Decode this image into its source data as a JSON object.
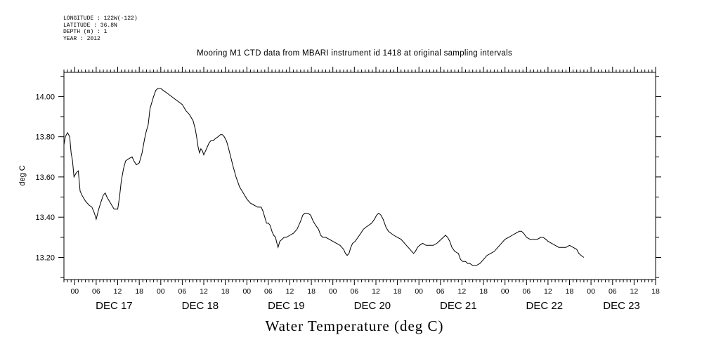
{
  "meta": {
    "longitude": "LONGITUDE : 122W(-122)",
    "latitude": "LATITUDE : 36.8N",
    "depth": "DEPTH (m) : 1",
    "year": "YEAR : 2012"
  },
  "chart_data": {
    "type": "line",
    "title": "Mooring M1 CTD data from MBARI instrument id 1418 at original sampling intervals",
    "xlabel": "Water Temperature (deg C)",
    "ylabel": "deg C",
    "ylim": [
      13.09,
      14.12
    ],
    "xlim": [
      -3,
      162
    ],
    "x_units": "hours since 2012-12-17 00:00 (tick labels show hour of day)",
    "y_ticks": [
      13.2,
      13.4,
      13.6,
      13.8,
      14.0
    ],
    "y_tick_labels": [
      "13.20",
      "13.40",
      "13.60",
      "13.80",
      "14.00"
    ],
    "x_ticks": [
      0,
      6,
      12,
      18,
      24,
      30,
      36,
      42,
      48,
      54,
      60,
      66,
      72,
      78,
      84,
      90,
      96,
      102,
      108,
      114,
      120,
      126,
      132,
      138,
      144,
      150,
      156,
      162
    ],
    "x_tick_labels": [
      "00",
      "06",
      "12",
      "18",
      "00",
      "06",
      "12",
      "18",
      "00",
      "06",
      "12",
      "18",
      "00",
      "06",
      "12",
      "18",
      "00",
      "06",
      "12",
      "18",
      "00",
      "06",
      "12",
      "18",
      "00",
      "06",
      "12",
      "18"
    ],
    "day_labels": [
      {
        "x": 11,
        "label": "DEC 17"
      },
      {
        "x": 35,
        "label": "DEC 18"
      },
      {
        "x": 59,
        "label": "DEC 19"
      },
      {
        "x": 83,
        "label": "DEC 20"
      },
      {
        "x": 107,
        "label": "DEC 21"
      },
      {
        "x": 131,
        "label": "DEC 22"
      },
      {
        "x": 152.5,
        "label": "DEC 23"
      }
    ],
    "grid": false,
    "series": [
      {
        "values": [
          [
            -3,
            13.76
          ],
          [
            -2.6,
            13.8
          ],
          [
            -2,
            13.82
          ],
          [
            -1.4,
            13.8
          ],
          [
            -1,
            13.72
          ],
          [
            -0.6,
            13.68
          ],
          [
            -0.2,
            13.6
          ],
          [
            0.4,
            13.62
          ],
          [
            1,
            13.63
          ],
          [
            1.5,
            13.53
          ],
          [
            2,
            13.51
          ],
          [
            3,
            13.48
          ],
          [
            4,
            13.46
          ],
          [
            4.8,
            13.45
          ],
          [
            5.5,
            13.42
          ],
          [
            6,
            13.39
          ],
          [
            6.7,
            13.44
          ],
          [
            7.4,
            13.48
          ],
          [
            8,
            13.51
          ],
          [
            8.5,
            13.52
          ],
          [
            9,
            13.5
          ],
          [
            10,
            13.47
          ],
          [
            11,
            13.44
          ],
          [
            12,
            13.44
          ],
          [
            12.5,
            13.5
          ],
          [
            13,
            13.58
          ],
          [
            13.6,
            13.64
          ],
          [
            14.2,
            13.68
          ],
          [
            15,
            13.69
          ],
          [
            16,
            13.7
          ],
          [
            16.5,
            13.68
          ],
          [
            17.2,
            13.66
          ],
          [
            18,
            13.67
          ],
          [
            18.8,
            13.72
          ],
          [
            19.5,
            13.79
          ],
          [
            20,
            13.83
          ],
          [
            20.5,
            13.86
          ],
          [
            21,
            13.94
          ],
          [
            21.5,
            13.97
          ],
          [
            22,
            14.0
          ],
          [
            22.6,
            14.03
          ],
          [
            23.2,
            14.04
          ],
          [
            24,
            14.04
          ],
          [
            24.7,
            14.03
          ],
          [
            25.5,
            14.02
          ],
          [
            27,
            14.0
          ],
          [
            28.5,
            13.98
          ],
          [
            30,
            13.96
          ],
          [
            31,
            13.93
          ],
          [
            32,
            13.91
          ],
          [
            33,
            13.88
          ],
          [
            33.6,
            13.84
          ],
          [
            34,
            13.8
          ],
          [
            34.4,
            13.75
          ],
          [
            34.8,
            13.72
          ],
          [
            35.2,
            13.74
          ],
          [
            35.6,
            13.73
          ],
          [
            36,
            13.71
          ],
          [
            36.5,
            13.73
          ],
          [
            37,
            13.75
          ],
          [
            37.5,
            13.77
          ],
          [
            38,
            13.78
          ],
          [
            38.6,
            13.78
          ],
          [
            39.2,
            13.79
          ],
          [
            40,
            13.8
          ],
          [
            40.6,
            13.81
          ],
          [
            41.2,
            13.81
          ],
          [
            41.7,
            13.8
          ],
          [
            42.3,
            13.78
          ],
          [
            42.8,
            13.75
          ],
          [
            43.5,
            13.7
          ],
          [
            44.2,
            13.65
          ],
          [
            45,
            13.6
          ],
          [
            46,
            13.55
          ],
          [
            47,
            13.52
          ],
          [
            48,
            13.49
          ],
          [
            49,
            13.47
          ],
          [
            50,
            13.46
          ],
          [
            51,
            13.45
          ],
          [
            52,
            13.45
          ],
          [
            52.5,
            13.43
          ],
          [
            53,
            13.4
          ],
          [
            53.5,
            13.37
          ],
          [
            54,
            13.37
          ],
          [
            54.5,
            13.36
          ],
          [
            55,
            13.33
          ],
          [
            55.5,
            13.31
          ],
          [
            56,
            13.3
          ],
          [
            56.4,
            13.27
          ],
          [
            56.7,
            13.25
          ],
          [
            57.2,
            13.28
          ],
          [
            57.8,
            13.29
          ],
          [
            58.4,
            13.3
          ],
          [
            59,
            13.3
          ],
          [
            60,
            13.31
          ],
          [
            61,
            13.32
          ],
          [
            62,
            13.34
          ],
          [
            63,
            13.38
          ],
          [
            63.6,
            13.41
          ],
          [
            64.2,
            13.42
          ],
          [
            65,
            13.42
          ],
          [
            65.8,
            13.41
          ],
          [
            66.5,
            13.38
          ],
          [
            67.2,
            13.36
          ],
          [
            68,
            13.34
          ],
          [
            68.6,
            13.31
          ],
          [
            69.2,
            13.3
          ],
          [
            70,
            13.3
          ],
          [
            71,
            13.29
          ],
          [
            72,
            13.28
          ],
          [
            73,
            13.27
          ],
          [
            74,
            13.26
          ],
          [
            75,
            13.24
          ],
          [
            75.5,
            13.22
          ],
          [
            76,
            13.21
          ],
          [
            76.5,
            13.22
          ],
          [
            77,
            13.25
          ],
          [
            77.5,
            13.27
          ],
          [
            78.2,
            13.28
          ],
          [
            79,
            13.3
          ],
          [
            79.8,
            13.32
          ],
          [
            80.5,
            13.34
          ],
          [
            81.2,
            13.35
          ],
          [
            82,
            13.36
          ],
          [
            82.8,
            13.37
          ],
          [
            83.6,
            13.39
          ],
          [
            84.2,
            13.41
          ],
          [
            84.8,
            13.42
          ],
          [
            85.4,
            13.41
          ],
          [
            86,
            13.39
          ],
          [
            86.8,
            13.35
          ],
          [
            87.5,
            13.33
          ],
          [
            88.2,
            13.32
          ],
          [
            89,
            13.31
          ],
          [
            90,
            13.3
          ],
          [
            91,
            13.29
          ],
          [
            92,
            13.27
          ],
          [
            93,
            13.25
          ],
          [
            94,
            13.23
          ],
          [
            94.5,
            13.22
          ],
          [
            95,
            13.23
          ],
          [
            95.6,
            13.25
          ],
          [
            96.2,
            13.26
          ],
          [
            97,
            13.27
          ],
          [
            98,
            13.26
          ],
          [
            99,
            13.26
          ],
          [
            100,
            13.26
          ],
          [
            101,
            13.27
          ],
          [
            101.6,
            13.28
          ],
          [
            102.2,
            13.29
          ],
          [
            102.8,
            13.3
          ],
          [
            103.4,
            13.31
          ],
          [
            104,
            13.3
          ],
          [
            104.6,
            13.28
          ],
          [
            105.2,
            13.25
          ],
          [
            106,
            13.23
          ],
          [
            107,
            13.22
          ],
          [
            107.6,
            13.19
          ],
          [
            108.2,
            13.18
          ],
          [
            109,
            13.18
          ],
          [
            109.6,
            13.17
          ],
          [
            110.2,
            13.17
          ],
          [
            111,
            13.16
          ],
          [
            112,
            13.16
          ],
          [
            113,
            13.17
          ],
          [
            114,
            13.19
          ],
          [
            115,
            13.21
          ],
          [
            116,
            13.22
          ],
          [
            117,
            13.23
          ],
          [
            118,
            13.25
          ],
          [
            119,
            13.27
          ],
          [
            120,
            13.29
          ],
          [
            121,
            13.3
          ],
          [
            122,
            13.31
          ],
          [
            123,
            13.32
          ],
          [
            124,
            13.33
          ],
          [
            124.6,
            13.33
          ],
          [
            125.2,
            13.32
          ],
          [
            126,
            13.3
          ],
          [
            127,
            13.29
          ],
          [
            128,
            13.29
          ],
          [
            129,
            13.29
          ],
          [
            130,
            13.3
          ],
          [
            130.6,
            13.3
          ],
          [
            131.4,
            13.29
          ],
          [
            132,
            13.28
          ],
          [
            133,
            13.27
          ],
          [
            134,
            13.26
          ],
          [
            135,
            13.25
          ],
          [
            136,
            13.25
          ],
          [
            137,
            13.25
          ],
          [
            138,
            13.26
          ],
          [
            139,
            13.25
          ],
          [
            140,
            13.24
          ],
          [
            140.6,
            13.22
          ],
          [
            141.2,
            13.21
          ],
          [
            142,
            13.2
          ]
        ]
      }
    ]
  }
}
